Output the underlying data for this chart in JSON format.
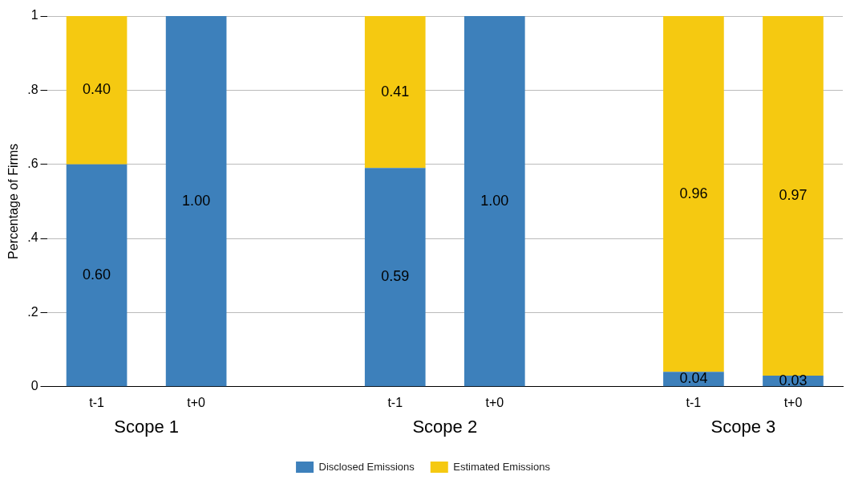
{
  "chart_data": {
    "type": "bar",
    "stacked": true,
    "ylabel": "Percentage of Firms",
    "categories": [
      "t-1",
      "t+0",
      null,
      "t-1",
      "t+0",
      null,
      "t-1",
      "t+0"
    ],
    "series": [
      {
        "name": "Disclosed Emissions",
        "color": "#3d80bb",
        "values": [
          0.6,
          1.0,
          null,
          0.59,
          1.0,
          null,
          0.04,
          0.03
        ],
        "value_labels": [
          "0.60",
          "1.00",
          null,
          "0.59",
          "1.00",
          null,
          "0.04",
          "0.03"
        ]
      },
      {
        "name": "Estimated Emissions",
        "color": "#f5c911",
        "values": [
          0.4,
          0,
          null,
          0.41,
          0,
          null,
          0.96,
          0.97
        ],
        "value_labels": [
          "0.40",
          null,
          null,
          "0.41",
          null,
          null,
          "0.96",
          "0.97"
        ]
      }
    ],
    "annotations": [
      "Scope 1",
      "Scope 2",
      "Scope 3"
    ],
    "ylim": [
      0,
      1
    ],
    "yticks": [
      0,
      {
        "value": 0.2,
        "label": ".2"
      },
      {
        "value": 0.4,
        "label": ".4"
      },
      {
        "value": 0.6,
        "label": ".6"
      },
      {
        "value": 0.8,
        "label": ".8"
      },
      1
    ],
    "grid": "y",
    "legend": "bottom"
  }
}
